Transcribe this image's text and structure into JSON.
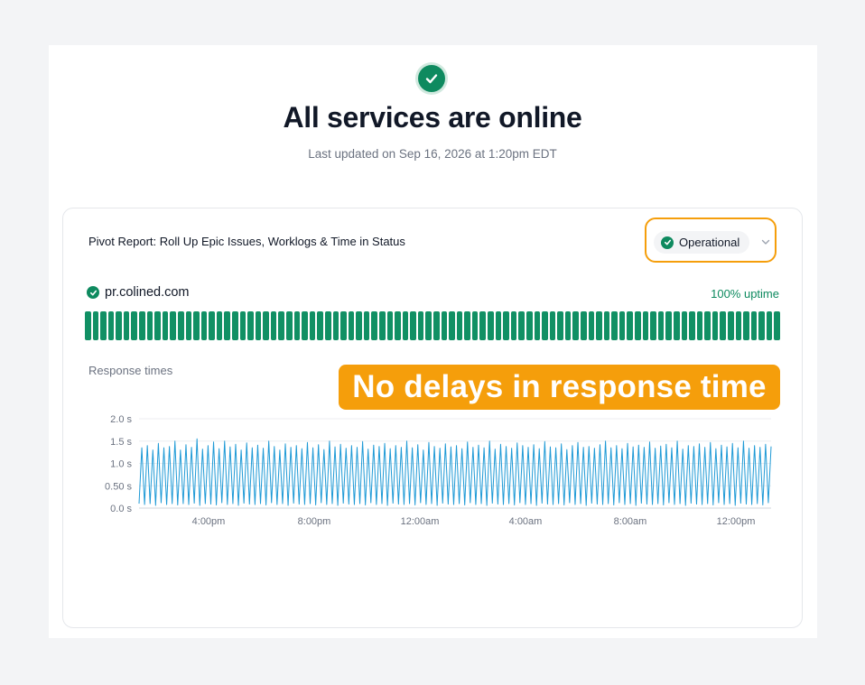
{
  "header": {
    "title": "All services are online",
    "updated": "Last updated on Sep 16, 2026 at 1:20pm EDT"
  },
  "card": {
    "title": "Pivot Report: Roll Up Epic Issues, Worklogs & Time in Status",
    "status": "Operational",
    "service": {
      "name": "pr.colined.com",
      "uptime": "100% uptime",
      "bars": 90,
      "bar_color": "#119064"
    },
    "response_label": "Response times"
  },
  "annotation": {
    "text": "No delays in response time",
    "color": "#f59e0b"
  },
  "chart_data": {
    "type": "line",
    "ylabel": "",
    "xlabel": "",
    "y_ticks": [
      "2.0 s",
      "1.5 s",
      "1.0 s",
      "0.50 s",
      "0.0 s"
    ],
    "ylim": [
      0,
      2.0
    ],
    "x_ticks": [
      "4:00pm",
      "8:00pm",
      "12:00am",
      "4:00am",
      "8:00am",
      "12:00pm"
    ],
    "grid": true,
    "line_color": "#1f9ad6",
    "series": [
      {
        "values": [
          0.1,
          1.35,
          0.08,
          1.4,
          0.1,
          1.3,
          0.06,
          1.45,
          0.12,
          1.35,
          0.08,
          1.38,
          0.1,
          1.5,
          0.07,
          1.3,
          0.1,
          1.42,
          0.08,
          1.36,
          0.11,
          1.55,
          0.06,
          1.32,
          0.1,
          1.4,
          0.09,
          1.48,
          0.07,
          1.33,
          0.12,
          1.5,
          0.08,
          1.37,
          0.1,
          1.43,
          0.06,
          1.3,
          0.11,
          1.46,
          0.09,
          1.35,
          0.08,
          1.41,
          0.1,
          1.34,
          0.07,
          1.5,
          0.12,
          1.38,
          0.08,
          1.3,
          0.1,
          1.44,
          0.06,
          1.36,
          0.11,
          1.4,
          0.09,
          1.33,
          0.08,
          1.47,
          0.1,
          1.35,
          0.07,
          1.42,
          0.12,
          1.31,
          0.08,
          1.5,
          0.1,
          1.37,
          0.06,
          1.43,
          0.11,
          1.34,
          0.09,
          1.4,
          0.08,
          1.36,
          0.1,
          1.49,
          0.07,
          1.32,
          0.12,
          1.41,
          0.08,
          1.38,
          0.1,
          1.45,
          0.06,
          1.33,
          0.11,
          1.4,
          0.09,
          1.36,
          0.08,
          1.5,
          0.1,
          1.35,
          0.07,
          1.42,
          0.12,
          1.3,
          0.08,
          1.47,
          0.1,
          1.38,
          0.06,
          1.34,
          0.11,
          1.44,
          0.09,
          1.37,
          0.08,
          1.4,
          0.1,
          1.33,
          0.07,
          1.48,
          0.12,
          1.36,
          0.08,
          1.41,
          0.1,
          1.35,
          0.06,
          1.5,
          0.11,
          1.32,
          0.09,
          1.43,
          0.08,
          1.38,
          0.1,
          1.34,
          0.07,
          1.46,
          0.12,
          1.4,
          0.08,
          1.36,
          0.1,
          1.42,
          0.06,
          1.33,
          0.11,
          1.49,
          0.09,
          1.37,
          0.08,
          1.35,
          0.1,
          1.44,
          0.07,
          1.31,
          0.12,
          1.4,
          0.08,
          1.47,
          0.1,
          1.36,
          0.06,
          1.38,
          0.11,
          1.34,
          0.09,
          1.42,
          0.08,
          1.5,
          0.1,
          1.35,
          0.07,
          1.4,
          0.12,
          1.33,
          0.08,
          1.45,
          0.1,
          1.37,
          0.06,
          1.41,
          0.11,
          1.36,
          0.09,
          1.48,
          0.08,
          1.34,
          0.1,
          1.39,
          0.07,
          1.43,
          0.12,
          1.35,
          0.08,
          1.5,
          0.1,
          1.32,
          0.06,
          1.4,
          0.11,
          1.38,
          0.09,
          1.44,
          0.08,
          1.36,
          0.1,
          1.47,
          0.07,
          1.33,
          0.12,
          1.41,
          0.08,
          1.37,
          0.1,
          1.45,
          0.06,
          1.35,
          0.11,
          1.5,
          0.09,
          1.34,
          0.08,
          1.4,
          0.1,
          1.36,
          0.07,
          1.43,
          0.12,
          1.38
        ]
      }
    ]
  }
}
